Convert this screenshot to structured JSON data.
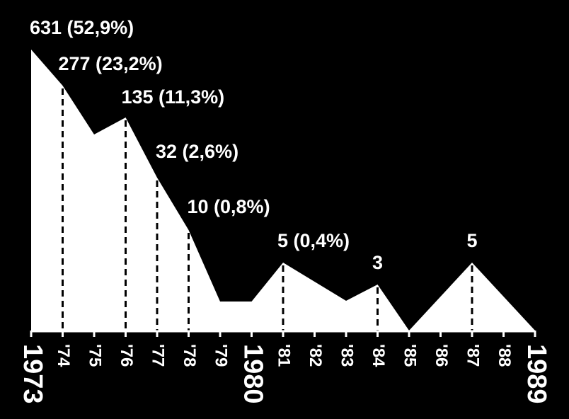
{
  "chart_data": {
    "type": "area",
    "x": [
      1973,
      1974,
      1975,
      1976,
      1977,
      1978,
      1979,
      1980,
      1981,
      1982,
      1983,
      1984,
      1985,
      1986,
      1987,
      1988,
      1989
    ],
    "values": [
      631,
      277,
      null,
      135,
      32,
      10,
      null,
      null,
      5,
      null,
      null,
      3,
      null,
      null,
      5,
      null,
      null
    ],
    "tick_labels": [
      "1973",
      "'74",
      "'75",
      "'76",
      "'77",
      "'78",
      "'79",
      "1980",
      "'81",
      "'82",
      "'83",
      "'84",
      "'85",
      "'86",
      "'87",
      "'88",
      "1989"
    ],
    "annotations": [
      {
        "x": 1973,
        "text": "631 (52,9%)"
      },
      {
        "x": 1974,
        "text": "277 (23,2%)"
      },
      {
        "x": 1976,
        "text": "135 (11,3%)"
      },
      {
        "x": 1977,
        "text": "32 (2,6%)"
      },
      {
        "x": 1978,
        "text": "10 (0,8%)"
      },
      {
        "x": 1981,
        "text": "5 (0,4%)"
      },
      {
        "x": 1984,
        "text": "3"
      },
      {
        "x": 1987,
        "text": "5"
      }
    ],
    "fill_color": "#ffffff",
    "background_color": "#000000",
    "scale": "non-linear",
    "grid": false,
    "legend": "none"
  }
}
